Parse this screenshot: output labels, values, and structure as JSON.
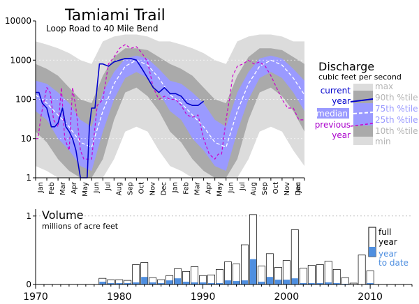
{
  "title": "Tamiami Trail",
  "subtitle": "Loop Road to 40 Mile Bend",
  "colors": {
    "current": "#0000cc",
    "previous": "#cc00cc",
    "median_line": "#ffffff",
    "band_25_75": "#9a9aff",
    "band_10_90": "#aaaaaa",
    "band_min_max": "#dcdcdc",
    "ytd_fill": "#4f8fe0",
    "ytd_text": "#4f8fe0",
    "legend_grey_text": "#b4b4b4",
    "legend_blue_text": "#9a9aff"
  },
  "chart_data": [
    {
      "type": "area",
      "title": "Discharge",
      "ylabel": "cubic feet per second",
      "yscale": "log",
      "ylim": [
        1,
        10000
      ],
      "y_ticks": [
        "1",
        "10",
        "100",
        "1000",
        "10000"
      ],
      "y_tick_values": [
        1,
        10,
        100,
        1000,
        10000
      ],
      "x_ticks": [
        "Jan",
        "Feb",
        "Mar",
        "Apr",
        "May",
        "Jun",
        "Jul",
        "Aug",
        "Sep",
        "Oct",
        "Nov",
        "Dec",
        "Jan",
        "Feb",
        "Mar",
        "Apr",
        "May",
        "Jun",
        "Jul",
        "Aug",
        "Sep",
        "Oct",
        "Nov",
        "Dec",
        "Jan"
      ],
      "xlim": [
        0,
        24
      ],
      "legend": {
        "title": "Discharge",
        "subtitle": "cubic feet per second",
        "current": "current year",
        "median": "median",
        "previous": "previous year",
        "max": "max",
        "p90": "90th %tile",
        "p75": "75th %tile",
        "p25": "25th %tile",
        "p10": "10th %tile",
        "min": "min"
      },
      "series": [
        {
          "key": "max",
          "x": [
            0,
            1,
            2,
            3,
            4,
            5,
            6,
            7,
            8,
            9,
            10,
            11,
            12,
            13,
            14,
            15,
            16,
            17,
            18,
            19,
            20,
            21,
            22,
            23,
            24
          ],
          "values": [
            3000,
            2500,
            2000,
            1500,
            1000,
            800,
            3000,
            4000,
            4500,
            4500,
            4000,
            3000,
            3000,
            2500,
            2000,
            1500,
            1000,
            800,
            3000,
            4000,
            4500,
            4500,
            4000,
            3000,
            3000
          ]
        },
        {
          "key": "p90",
          "x": [
            0,
            1,
            2,
            3,
            4,
            5,
            6,
            7,
            8,
            9,
            10,
            11,
            12,
            13,
            14,
            15,
            16,
            17,
            18,
            19,
            20,
            21,
            22,
            23,
            24
          ],
          "values": [
            800,
            600,
            400,
            200,
            100,
            80,
            400,
            1200,
            2000,
            2000,
            1800,
            1200,
            800,
            600,
            400,
            200,
            100,
            80,
            400,
            1200,
            2000,
            2000,
            1800,
            1200,
            800
          ]
        },
        {
          "key": "p75",
          "x": [
            0,
            1,
            2,
            3,
            4,
            5,
            6,
            7,
            8,
            9,
            10,
            11,
            12,
            13,
            14,
            15,
            16,
            17,
            18,
            19,
            20,
            21,
            22,
            23,
            24
          ],
          "values": [
            300,
            250,
            150,
            80,
            30,
            20,
            150,
            500,
            1100,
            1300,
            1100,
            600,
            300,
            250,
            150,
            80,
            30,
            20,
            150,
            500,
            1100,
            1300,
            1100,
            600,
            300
          ]
        },
        {
          "key": "median",
          "x": [
            0,
            1,
            2,
            3,
            4,
            5,
            6,
            7,
            8,
            9,
            10,
            11,
            12,
            13,
            14,
            15,
            16,
            17,
            18,
            19,
            20,
            21,
            22,
            23,
            24
          ],
          "values": [
            130,
            80,
            40,
            20,
            8,
            6,
            50,
            250,
            700,
            1000,
            750,
            350,
            130,
            80,
            40,
            20,
            8,
            6,
            50,
            250,
            700,
            1000,
            750,
            350,
            130
          ]
        },
        {
          "key": "p25",
          "x": [
            0,
            1,
            2,
            3,
            4,
            5,
            6,
            7,
            8,
            9,
            10,
            11,
            12,
            13,
            14,
            15,
            16,
            17,
            18,
            19,
            20,
            21,
            22,
            23,
            24
          ],
          "values": [
            50,
            30,
            10,
            5,
            2,
            1.5,
            15,
            100,
            350,
            500,
            350,
            150,
            50,
            30,
            10,
            5,
            2,
            1.5,
            15,
            100,
            350,
            500,
            350,
            150,
            50
          ]
        },
        {
          "key": "p10",
          "x": [
            0,
            1,
            2,
            3,
            4,
            5,
            6,
            7,
            8,
            9,
            10,
            11,
            12,
            13,
            14,
            15,
            16,
            17,
            18,
            19,
            20,
            21,
            22,
            23,
            24
          ],
          "values": [
            15,
            8,
            3,
            1.5,
            1,
            1,
            3,
            30,
            150,
            200,
            120,
            50,
            15,
            8,
            3,
            1.5,
            1,
            1,
            3,
            30,
            150,
            200,
            120,
            50,
            15
          ]
        },
        {
          "key": "min",
          "x": [
            0,
            1,
            2,
            3,
            4,
            5,
            6,
            7,
            8,
            9,
            10,
            11,
            12,
            13,
            14,
            15,
            16,
            17,
            18,
            19,
            20,
            21,
            22,
            23,
            24
          ],
          "values": [
            2,
            1.5,
            1,
            1,
            1,
            1,
            1,
            3,
            15,
            20,
            15,
            5,
            2,
            1.5,
            1,
            1,
            1,
            1,
            1,
            3,
            15,
            20,
            15,
            5,
            2
          ]
        },
        {
          "key": "current",
          "name": "current year",
          "x": [
            0,
            0.3,
            0.6,
            1,
            1.4,
            1.7,
            2,
            2.4,
            2.7,
            3,
            3.3,
            3.6,
            4,
            4.3,
            4.6,
            4.8,
            5,
            5.3,
            5.7,
            6,
            6.5,
            7,
            7.5,
            8,
            8.5,
            9,
            9.5,
            10,
            10.5,
            11,
            11.5,
            12,
            12.5,
            13,
            13.5,
            14,
            14.5,
            15
          ],
          "values": [
            150,
            150,
            80,
            60,
            20,
            20,
            25,
            60,
            20,
            15,
            10,
            5,
            1,
            1,
            1,
            20,
            60,
            60,
            800,
            800,
            700,
            900,
            1000,
            1100,
            1100,
            1000,
            600,
            350,
            200,
            150,
            200,
            140,
            140,
            120,
            80,
            70,
            70,
            90
          ]
        },
        {
          "key": "previous",
          "name": "previous year",
          "x": [
            0,
            0.2,
            0.5,
            1,
            1.3,
            1.6,
            2,
            2.3,
            2.6,
            3,
            3.3,
            3.6,
            4,
            4.3,
            4.6,
            5,
            5.5,
            6,
            6.5,
            7,
            7.5,
            8,
            8.5,
            9,
            9.5,
            10,
            10.5,
            11,
            11.5,
            12,
            12.5,
            13,
            13.5,
            14,
            14.5,
            15,
            15.5,
            16,
            16.3,
            16.6,
            17,
            17.3,
            17.6,
            18,
            18.5,
            19,
            19.5,
            20,
            20.5,
            21,
            21.5,
            22,
            22.5,
            23,
            23.5,
            24
          ],
          "values": [
            10,
            10,
            40,
            200,
            150,
            30,
            20,
            200,
            10,
            5,
            200,
            60,
            5,
            3,
            3,
            3,
            70,
            100,
            800,
            1200,
            2000,
            2500,
            2000,
            2200,
            1500,
            900,
            200,
            100,
            120,
            100,
            100,
            70,
            40,
            35,
            40,
            10,
            4,
            3,
            4,
            4,
            30,
            100,
            400,
            700,
            800,
            1000,
            800,
            900,
            700,
            400,
            200,
            100,
            60,
            60,
            30,
            30
          ]
        }
      ]
    },
    {
      "type": "bar",
      "title": "Volume",
      "ylabel": "millions of acre feet",
      "ylim": [
        0,
        1.1
      ],
      "y_ticks": [
        "0",
        "1"
      ],
      "y_tick_values": [
        0,
        1
      ],
      "xlim": [
        1970,
        2015
      ],
      "x_ticks": [
        "1970",
        "1980",
        "1990",
        "2000",
        "2010"
      ],
      "x_tick_values": [
        1970,
        1980,
        1990,
        2000,
        2010
      ],
      "legend": {
        "full_a": "full",
        "full_b": "year",
        "ytd_a": "year",
        "ytd_b": "to date"
      },
      "series": [
        {
          "name": "full year",
          "x": [
            1978,
            1979,
            1980,
            1981,
            1982,
            1983,
            1984,
            1985,
            1986,
            1987,
            1988,
            1989,
            1990,
            1991,
            1992,
            1993,
            1994,
            1995,
            1996,
            1997,
            1998,
            1999,
            2000,
            2001,
            2002,
            2003,
            2004,
            2005,
            2006,
            2007,
            2008,
            2009,
            2010
          ],
          "values": [
            0.09,
            0.07,
            0.07,
            0.06,
            0.29,
            0.32,
            0.1,
            0.07,
            0.13,
            0.23,
            0.19,
            0.26,
            0.13,
            0.14,
            0.22,
            0.33,
            0.3,
            0.58,
            1.02,
            0.27,
            0.45,
            0.25,
            0.35,
            0.8,
            0.24,
            0.28,
            0.29,
            0.34,
            0.22,
            0.1,
            0.02,
            0.43,
            0.2
          ]
        },
        {
          "name": "year to date",
          "x": [
            1978,
            1979,
            1980,
            1981,
            1982,
            1983,
            1984,
            1985,
            1986,
            1987,
            1988,
            1989,
            1990,
            1991,
            1992,
            1993,
            1994,
            1995,
            1996,
            1997,
            1998,
            1999,
            2000,
            2001,
            2002,
            2003,
            2004,
            2005,
            2006,
            2007,
            2008,
            2009,
            2010
          ],
          "values": [
            0.04,
            0.02,
            0.02,
            0.02,
            0.03,
            0.11,
            0.03,
            0.02,
            0.06,
            0.09,
            0.04,
            0.03,
            0.03,
            0.02,
            0.02,
            0.06,
            0.05,
            0.06,
            0.37,
            0.04,
            0.11,
            0.07,
            0.07,
            0.09,
            0.02,
            0.02,
            0.02,
            0.03,
            0.02,
            0.01,
            0.0,
            0.0,
            0.02
          ]
        }
      ]
    }
  ]
}
